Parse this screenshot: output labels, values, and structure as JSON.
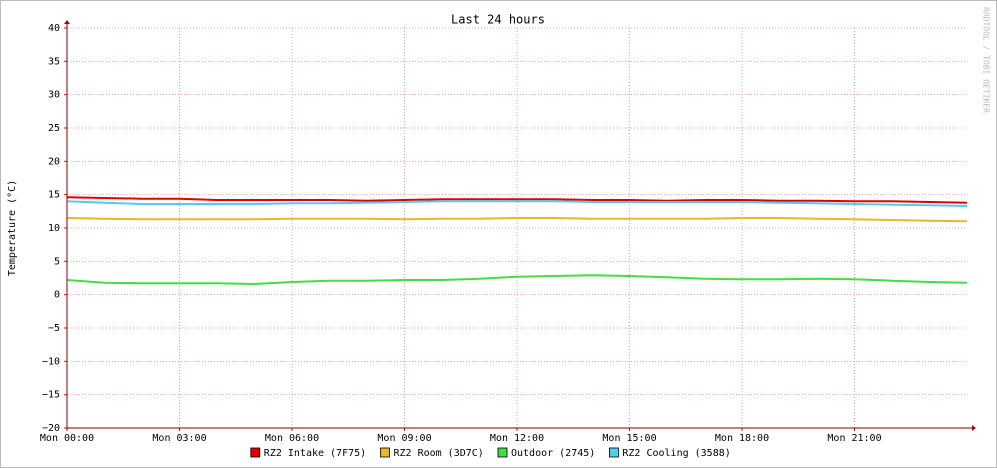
{
  "chart_data": {
    "type": "line",
    "title": "Last 24 hours",
    "y_label": "Temperature (°C)",
    "side_note": "RRDTOOL / TOBI OETIKER",
    "grid": true,
    "xlim": [
      0,
      24
    ],
    "xticks": [
      {
        "value": 0,
        "label": "Mon 00:00"
      },
      {
        "value": 3,
        "label": "Mon 03:00"
      },
      {
        "value": 6,
        "label": "Mon 06:00"
      },
      {
        "value": 9,
        "label": "Mon 09:00"
      },
      {
        "value": 12,
        "label": "Mon 12:00"
      },
      {
        "value": 15,
        "label": "Mon 15:00"
      },
      {
        "value": 18,
        "label": "Mon 18:00"
      },
      {
        "value": 21,
        "label": "Mon 21:00"
      }
    ],
    "ylim": [
      -20,
      40
    ],
    "yticks": [
      {
        "value": -20,
        "label": "−20"
      },
      {
        "value": -15,
        "label": "−15"
      },
      {
        "value": -10,
        "label": "−10"
      },
      {
        "value": -5,
        "label": "−5"
      },
      0,
      5,
      10,
      15,
      20,
      25,
      30,
      35,
      40
    ],
    "x": [
      0,
      1,
      2,
      3,
      4,
      5,
      6,
      7,
      8,
      9,
      10,
      11,
      12,
      13,
      14,
      15,
      16,
      17,
      18,
      19,
      20,
      21,
      22,
      23,
      24
    ],
    "series": [
      {
        "name": "RZ2 Intake (7F75)",
        "color": "#e00000",
        "values": [
          14.6,
          14.5,
          14.4,
          14.4,
          14.2,
          14.2,
          14.2,
          14.2,
          14.1,
          14.2,
          14.3,
          14.3,
          14.3,
          14.3,
          14.2,
          14.2,
          14.1,
          14.2,
          14.2,
          14.1,
          14.1,
          14.0,
          14.0,
          13.9,
          13.8
        ]
      },
      {
        "name": "RZ2 Room (3D7C)",
        "color": "#e8b830",
        "values": [
          11.5,
          11.4,
          11.3,
          11.3,
          11.3,
          11.3,
          11.4,
          11.4,
          11.4,
          11.3,
          11.4,
          11.4,
          11.5,
          11.5,
          11.4,
          11.4,
          11.4,
          11.4,
          11.5,
          11.5,
          11.4,
          11.3,
          11.2,
          11.1,
          11.0
        ]
      },
      {
        "name": "Outdoor (2745)",
        "color": "#44dd44",
        "values": [
          2.2,
          1.8,
          1.7,
          1.7,
          1.7,
          1.6,
          1.9,
          2.1,
          2.1,
          2.2,
          2.2,
          2.4,
          2.7,
          2.8,
          2.9,
          2.8,
          2.6,
          2.4,
          2.3,
          2.3,
          2.4,
          2.3,
          2.1,
          1.9,
          1.8
        ]
      },
      {
        "name": "RZ2 Cooling (3588)",
        "color": "#55ccee",
        "values": [
          14.0,
          13.8,
          13.6,
          13.6,
          13.6,
          13.6,
          13.7,
          13.7,
          13.8,
          13.9,
          14.0,
          14.0,
          14.0,
          14.0,
          13.9,
          13.9,
          13.9,
          13.9,
          13.9,
          13.8,
          13.7,
          13.6,
          13.5,
          13.4,
          13.3
        ]
      }
    ]
  }
}
